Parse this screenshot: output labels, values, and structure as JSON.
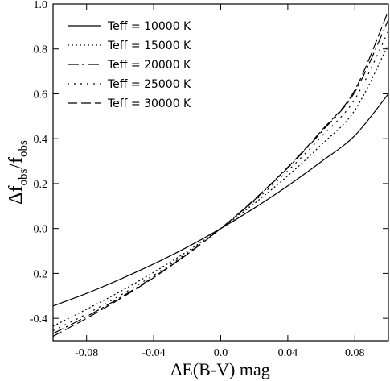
{
  "chart_data": {
    "type": "line",
    "xlabel": "ΔE(B-V) mag",
    "ylabel": "Δf_obs/f_obs",
    "xlim": [
      -0.1,
      0.1
    ],
    "ylim": [
      -0.5,
      1.0
    ],
    "x_ticks": [
      -0.08,
      -0.04,
      0.0,
      0.04,
      0.08
    ],
    "x_tick_labels": [
      "-0.08",
      "-0.04",
      "0.0",
      "0.04",
      "0.08"
    ],
    "y_ticks": [
      -0.4,
      -0.2,
      0.0,
      0.2,
      0.4,
      0.6,
      0.8,
      1.0
    ],
    "y_tick_labels": [
      "-0.4",
      "-0.2",
      "0.0",
      "0.2",
      "0.4",
      "0.6",
      "0.8",
      "1.0"
    ],
    "grid": false,
    "legend_position": "top-left",
    "x": [
      -0.1,
      -0.08,
      -0.06,
      -0.04,
      -0.02,
      0.0,
      0.02,
      0.04,
      0.06,
      0.08,
      0.1
    ],
    "series": [
      {
        "name": "Teff = 10000 K",
        "dash": "solid",
        "values": [
          -0.345,
          -0.289,
          -0.226,
          -0.158,
          -0.083,
          0.0,
          0.091,
          0.19,
          0.298,
          0.414,
          0.6
        ]
      },
      {
        "name": "Teff = 15000 K",
        "dash": "dotted",
        "values": [
          -0.435,
          -0.36,
          -0.281,
          -0.195,
          -0.102,
          0.0,
          0.111,
          0.235,
          0.373,
          0.527,
          0.82
        ]
      },
      {
        "name": "Teff = 20000 K",
        "dash": "longdash",
        "values": [
          -0.468,
          -0.392,
          -0.308,
          -0.216,
          -0.114,
          0.0,
          0.127,
          0.27,
          0.43,
          0.608,
          0.93
        ]
      },
      {
        "name": "Teff = 25000 K",
        "dash": "shortdot",
        "values": [
          -0.455,
          -0.381,
          -0.298,
          -0.208,
          -0.109,
          0.0,
          0.121,
          0.257,
          0.409,
          0.576,
          0.88
        ]
      },
      {
        "name": "Teff = 30000 K",
        "dash": "dash",
        "values": [
          -0.48,
          -0.4,
          -0.313,
          -0.219,
          -0.115,
          0.0,
          0.129,
          0.273,
          0.435,
          0.617,
          0.97
        ]
      }
    ]
  }
}
